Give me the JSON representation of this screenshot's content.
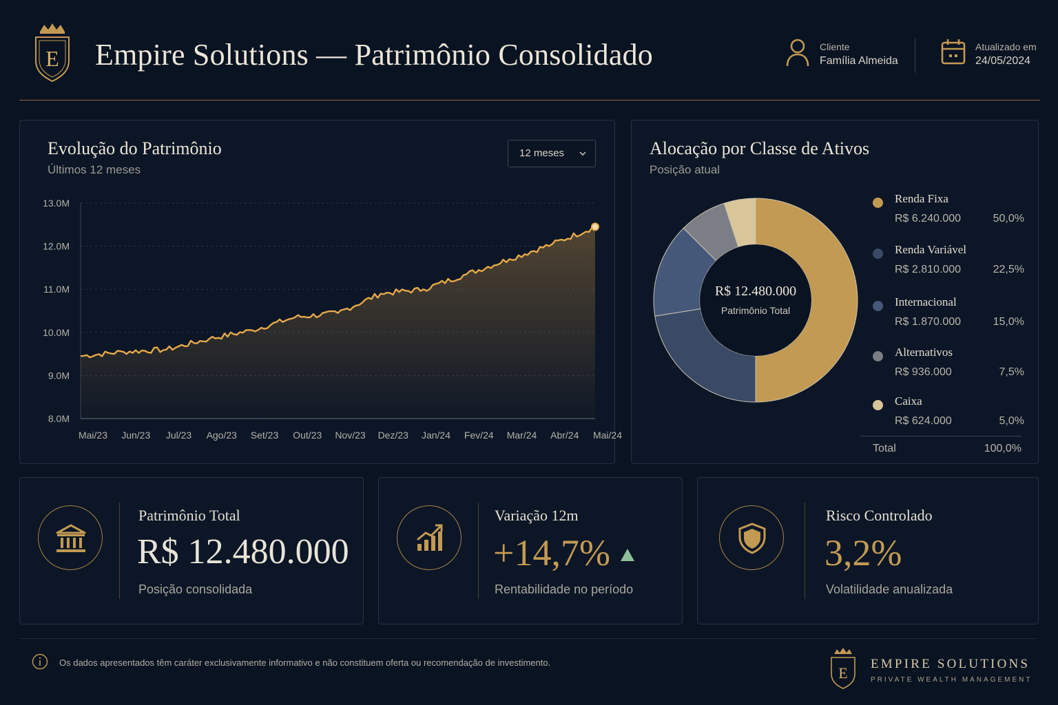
{
  "header": {
    "title": "Empire Solutions — Patrimônio Consolidado",
    "crest_letter": "E",
    "client_label": "Cliente",
    "client_name": "Família Almeida",
    "updated_label": "Atualizado em",
    "updated_date": "24/05/2024"
  },
  "evolution": {
    "title": "Evolução do Patrimônio",
    "subtitle": "Últimos 12 meses",
    "range_selected": "12 meses"
  },
  "allocation": {
    "title": "Alocação por Classe de Ativos",
    "subtitle": "Posição atual",
    "center_value": "R$ 12.480.000",
    "center_label": "Patrimônio Total",
    "items": [
      {
        "name": "Renda Fixa",
        "amount": "R$ 6.240.000",
        "pct": "50,0%",
        "color": "#c39a53"
      },
      {
        "name": "Renda Variável",
        "amount": "R$ 2.810.000",
        "pct": "22,5%",
        "color": "#3a4a66"
      },
      {
        "name": "Internacional",
        "amount": "R$ 1.870.000",
        "pct": "15,0%",
        "color": "#46587a"
      },
      {
        "name": "Alternativos",
        "amount": "R$ 936.000",
        "pct": "7,5%",
        "color": "#7b7e84"
      },
      {
        "name": "Caixa",
        "amount": "R$ 624.000",
        "pct": "5,0%",
        "color": "#d9c59a"
      }
    ],
    "total_label": "Total",
    "total_pct": "100,0%"
  },
  "kpis": {
    "total": {
      "label": "Patrimônio Total",
      "value": "R$ 12.480.000",
      "sub": "Posição consolidada",
      "icon": "bank-icon"
    },
    "variation": {
      "label": "Variação 12m",
      "value": "+14,7%",
      "sub": "Rentabilidade no período",
      "icon": "growth-chart-icon",
      "trend": "up-triangle-icon"
    },
    "risk": {
      "label": "Risco Controlado",
      "value": "3,2%",
      "sub": "Volatilidade anualizada",
      "icon": "shield-icon"
    }
  },
  "footer": {
    "note": "Os dados apresentados têm caráter exclusivamente informativo e não constituem oferta ou recomendação de investimento.",
    "brand": "EMPIRE SOLUTIONS",
    "tagline": "PRIVATE WEALTH MANAGEMENT"
  },
  "colors": {
    "gold": "#d2a65a",
    "background": "#0a1322",
    "up": "#8fbf9a"
  },
  "chart_data": [
    {
      "type": "area",
      "title": "Evolução do Patrimônio",
      "xlabel": "",
      "ylabel": "",
      "categories": [
        "Mai/23",
        "Jun/23",
        "Jul/23",
        "Ago/23",
        "Set/23",
        "Out/23",
        "Nov/23",
        "Dez/23",
        "Jan/24",
        "Fev/24",
        "Mar/24",
        "Abr/24",
        "Mai/24"
      ],
      "y_ticks": [
        "8.0M",
        "9.0M",
        "10.0M",
        "11.0M",
        "12.0M",
        "13.0M"
      ],
      "ylim": [
        8.0,
        13.0
      ],
      "values": [
        9.45,
        9.55,
        9.6,
        9.85,
        10.05,
        10.35,
        10.45,
        10.9,
        11.0,
        11.35,
        11.7,
        12.05,
        12.45
      ],
      "grid": true
    },
    {
      "type": "pie",
      "title": "Alocação por Classe de Ativos",
      "categories": [
        "Renda Fixa",
        "Renda Variável",
        "Internacional",
        "Alternativos",
        "Caixa"
      ],
      "values": [
        50.0,
        22.5,
        15.0,
        7.5,
        5.0
      ]
    }
  ]
}
